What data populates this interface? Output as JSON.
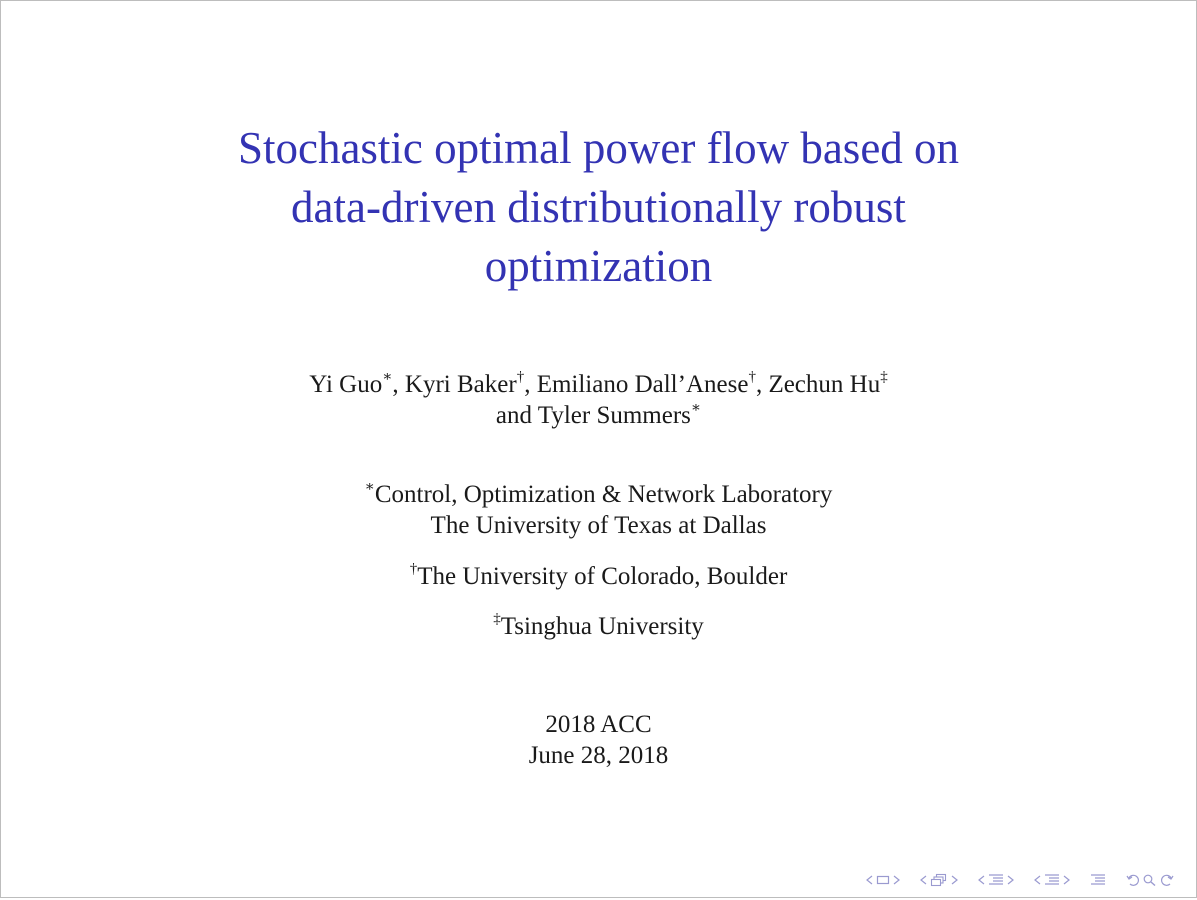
{
  "slide": {
    "title_lines": [
      "Stochastic optimal power flow based on",
      "data-driven distributionally robust",
      "optimization"
    ],
    "authors": {
      "line1": [
        {
          "name": "Yi Guo",
          "mark": "∗",
          "sep": ", "
        },
        {
          "name": "Kyri Baker",
          "mark": "†",
          "sep": ", "
        },
        {
          "name": "Emiliano Dall’Anese",
          "mark": "†",
          "sep": ", "
        },
        {
          "name": "Zechun Hu",
          "mark": "‡",
          "sep": ""
        }
      ],
      "line2_prefix": "and ",
      "line2_name": "Tyler Summers",
      "line2_mark": "∗"
    },
    "affiliations": {
      "a1_mark": "∗",
      "a1_line1": "Control, Optimization & Network Laboratory",
      "a1_line2": "The University of Texas at Dallas",
      "a2_mark": "†",
      "a2_text": "The University of Colorado, Boulder",
      "a3_mark": "‡",
      "a3_text": "Tsinghua University"
    },
    "conference": "2018 ACC",
    "date": "June 28, 2018"
  },
  "nav_icons": [
    "prev-frame-arrow-icon",
    "frame-icon",
    "next-frame-arrow-icon",
    "prev-subsection-arrow-icon",
    "subsection-icon",
    "next-subsection-arrow-icon",
    "prev-section-arrow-icon",
    "section-icon",
    "next-section-arrow-icon",
    "prev-doc-arrow-icon",
    "document-icon",
    "next-doc-arrow-icon",
    "appendix-icon",
    "back-icon",
    "search-icon",
    "forward-icon"
  ],
  "colors": {
    "title": "#3333b3",
    "text": "#1a1a1a",
    "nav": "#9a9ad0"
  }
}
